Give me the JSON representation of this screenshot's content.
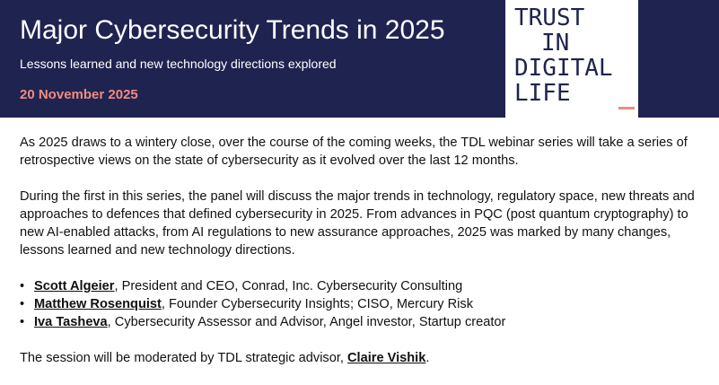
{
  "header": {
    "title": "Major Cybersecurity Trends in 2025",
    "subtitle": "Lessons learned and new technology directions explored",
    "date": "20 November 2025",
    "logo_lines": [
      "TRUST",
      "IN",
      "DIGITAL",
      "LIFE"
    ]
  },
  "body": {
    "paragraph1": "As 2025 draws to a wintery close, over the course of the coming weeks, the TDL webinar series will take a series of retrospective views on the state of cybersecurity as it evolved over the last 12 months.",
    "paragraph2": "During the first in this series, the panel will discuss the major trends in technology, regulatory space, new threats and approaches to defences that defined cybersecurity in 2025.  From advances in PQC (post quantum cryptography) to new AI-enabled attacks, from AI regulations to new assurance approaches, 2025 was marked by many changes, lessons learned and new technology directions.",
    "speakers": [
      {
        "name": "Scott Algeier",
        "role": ", President and CEO, Conrad, Inc. Cybersecurity Consulting"
      },
      {
        "name": "Matthew Rosenquist",
        "role": ", Founder Cybersecurity Insights; CISO, Mercury Risk"
      },
      {
        "name": "Iva Tasheva",
        "role": ", Cybersecurity Assessor and Advisor, Angel investor, Startup creator"
      }
    ],
    "moderator_prefix": "The session will be moderated by TDL strategic advisor, ",
    "moderator_name": "Claire Vishik",
    "moderator_suffix": "."
  },
  "colors": {
    "header_background": "#1f2350",
    "accent": "#f08b7f",
    "text": "#111111"
  }
}
